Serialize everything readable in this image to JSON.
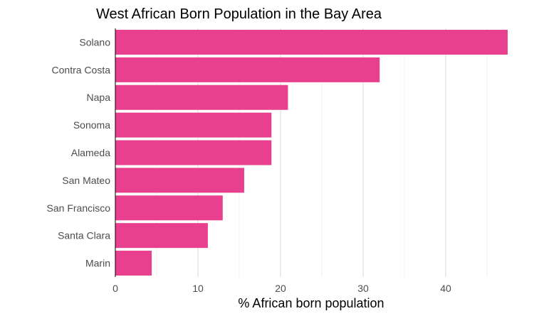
{
  "chart_data": {
    "type": "bar",
    "orientation": "horizontal",
    "title": "West African Born Population in the Bay Area",
    "xlabel": "% African born population",
    "ylabel": "",
    "categories": [
      "Solano",
      "Contra Costa",
      "Napa",
      "Sonoma",
      "Alameda",
      "San Mateo",
      "San Francisco",
      "Santa Clara",
      "Marin"
    ],
    "values": [
      47.5,
      32.0,
      20.9,
      18.9,
      18.9,
      15.6,
      13.0,
      11.2,
      4.4
    ],
    "xlim": [
      0,
      47.5
    ],
    "xticks": [
      0,
      10,
      20,
      30,
      40
    ],
    "bar_color": "#e8408f",
    "grid": "vertical"
  }
}
